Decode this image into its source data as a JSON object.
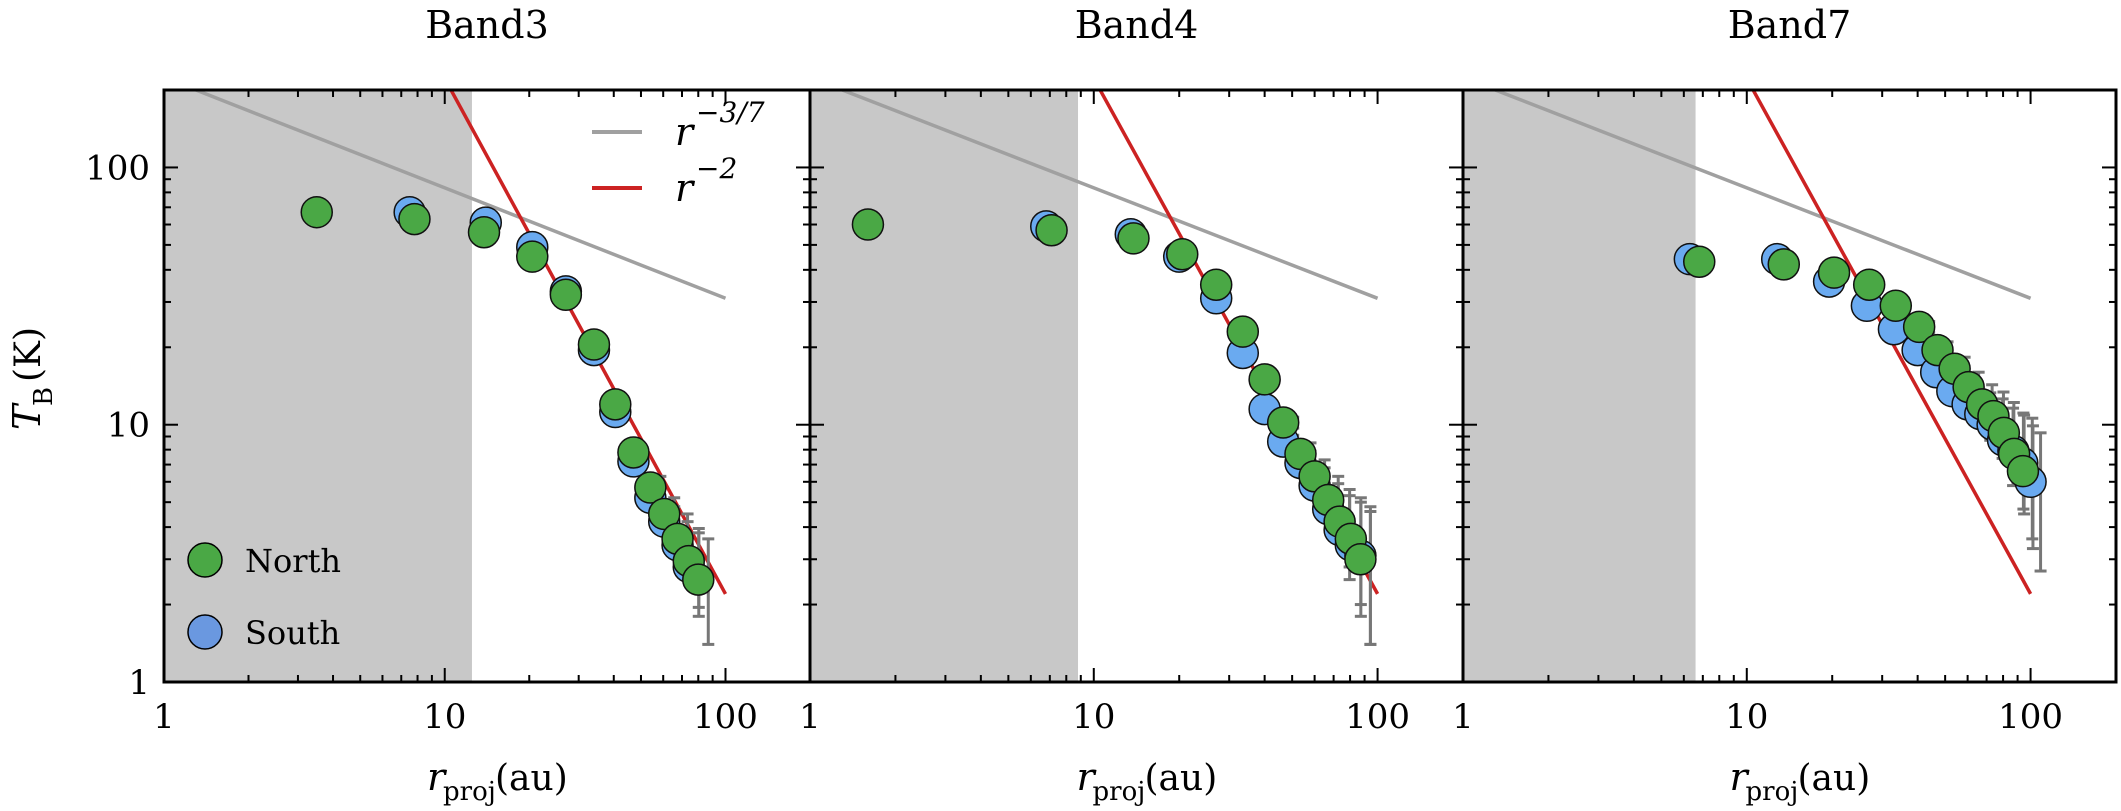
{
  "chart_data": [
    {
      "type": "scatter",
      "title": "Band3",
      "xlabel": "r_proj (au)",
      "ylabel": "T_B (K)",
      "xscale": "log",
      "yscale": "log",
      "xlim": [
        1,
        200
      ],
      "ylim": [
        1,
        200
      ],
      "xticks": [
        "1",
        "10",
        "100"
      ],
      "yticks": [
        "1",
        "10",
        "100"
      ],
      "shaded_region": [
        1,
        12.5
      ],
      "reference_lines": [
        {
          "name": "r^{-3/7}",
          "color": "#a0a0a0",
          "x": [
            1.3,
            100
          ],
          "y": [
            200,
            31
          ]
        },
        {
          "name": "r^{-2}",
          "color": "#cc2222",
          "x": [
            10.4,
            100
          ],
          "y": [
            205,
            2.2
          ]
        }
      ],
      "series": [
        {
          "name": "South",
          "color": "#6aaaf0",
          "points": [
            {
              "x": 7.5,
              "y": 67,
              "err": 0
            },
            {
              "x": 14,
              "y": 61,
              "err": 0
            },
            {
              "x": 20.5,
              "y": 49,
              "err": 0
            },
            {
              "x": 27,
              "y": 33,
              "err": 0
            },
            {
              "x": 34,
              "y": 19.5,
              "err": 0
            },
            {
              "x": 40.5,
              "y": 11.2,
              "err": 0
            },
            {
              "x": 47,
              "y": 7.2,
              "err": 0
            },
            {
              "x": 54,
              "y": 5.2,
              "err": 0.5
            },
            {
              "x": 60.5,
              "y": 4.2,
              "err": 0.6
            },
            {
              "x": 67.5,
              "y": 3.4,
              "err": 0.8
            },
            {
              "x": 74,
              "y": 2.8,
              "err": 1.0
            }
          ]
        },
        {
          "name": "North",
          "color": "#4aa845",
          "points": [
            {
              "x": 3.5,
              "y": 67,
              "err": 0
            },
            {
              "x": 7.8,
              "y": 63,
              "err": 0
            },
            {
              "x": 13.8,
              "y": 56,
              "err": 0
            },
            {
              "x": 20.5,
              "y": 45,
              "err": 0
            },
            {
              "x": 27,
              "y": 32,
              "err": 0
            },
            {
              "x": 34,
              "y": 20.5,
              "err": 0
            },
            {
              "x": 40.5,
              "y": 12,
              "err": 0
            },
            {
              "x": 47,
              "y": 7.8,
              "err": 0
            },
            {
              "x": 54,
              "y": 5.7,
              "err": 0.6
            },
            {
              "x": 60.5,
              "y": 4.5,
              "err": 0.7
            },
            {
              "x": 67.5,
              "y": 3.6,
              "err": 0.9
            },
            {
              "x": 74,
              "y": 2.95,
              "err": 1.0
            },
            {
              "x": 80,
              "y": 2.5,
              "err": 1.1
            }
          ]
        }
      ]
    },
    {
      "type": "scatter",
      "title": "Band4",
      "xlabel": "r_proj (au)",
      "ylabel": "",
      "xscale": "log",
      "yscale": "log",
      "xlim": [
        1,
        200
      ],
      "ylim": [
        1,
        200
      ],
      "xticks": [
        "1",
        "10",
        "100"
      ],
      "shaded_region": [
        1,
        8.8
      ],
      "reference_lines": [
        {
          "name": "r^{-3/7}",
          "color": "#a0a0a0",
          "x": [
            1.3,
            100
          ],
          "y": [
            200,
            31
          ]
        },
        {
          "name": "r^{-2}",
          "color": "#cc2222",
          "x": [
            10.4,
            100
          ],
          "y": [
            205,
            2.2
          ]
        }
      ],
      "series": [
        {
          "name": "South",
          "color": "#6aaaf0",
          "points": [
            {
              "x": 6.8,
              "y": 59,
              "err": 0
            },
            {
              "x": 13.5,
              "y": 55,
              "err": 0
            },
            {
              "x": 20,
              "y": 45,
              "err": 0
            },
            {
              "x": 27,
              "y": 31,
              "err": 0
            },
            {
              "x": 33.5,
              "y": 19,
              "err": 0
            },
            {
              "x": 40,
              "y": 11.5,
              "err": 0
            },
            {
              "x": 46.5,
              "y": 8.6,
              "err": 0.5
            },
            {
              "x": 53.5,
              "y": 7.1,
              "err": 0.8
            },
            {
              "x": 60,
              "y": 5.8,
              "err": 1.0
            },
            {
              "x": 67,
              "y": 4.7,
              "err": 1.2
            },
            {
              "x": 73.5,
              "y": 3.9,
              "err": 1.4
            },
            {
              "x": 80.5,
              "y": 3.4,
              "err": 1.6
            },
            {
              "x": 87,
              "y": 3.1,
              "err": 1.7
            }
          ]
        },
        {
          "name": "North",
          "color": "#4aa845",
          "points": [
            {
              "x": 1.6,
              "y": 60,
              "err": 0
            },
            {
              "x": 7.1,
              "y": 57,
              "err": 0
            },
            {
              "x": 13.8,
              "y": 53,
              "err": 0
            },
            {
              "x": 20.5,
              "y": 46,
              "err": 0
            },
            {
              "x": 27,
              "y": 35,
              "err": 0
            },
            {
              "x": 33.5,
              "y": 23,
              "err": 0
            },
            {
              "x": 40,
              "y": 15,
              "err": 0
            },
            {
              "x": 46.5,
              "y": 10.2,
              "err": 0.5
            },
            {
              "x": 53.5,
              "y": 7.7,
              "err": 0.8
            },
            {
              "x": 60,
              "y": 6.3,
              "err": 1.0
            },
            {
              "x": 67,
              "y": 5.1,
              "err": 1.2
            },
            {
              "x": 73.5,
              "y": 4.2,
              "err": 1.4
            },
            {
              "x": 80.5,
              "y": 3.6,
              "err": 1.6
            },
            {
              "x": 87,
              "y": 3.0,
              "err": 1.6
            }
          ]
        }
      ]
    },
    {
      "type": "scatter",
      "title": "Band7",
      "xlabel": "r_proj (au)",
      "ylabel": "",
      "xscale": "log",
      "yscale": "log",
      "xlim": [
        1,
        200
      ],
      "ylim": [
        1,
        200
      ],
      "xticks": [
        "1",
        "10",
        "100"
      ],
      "shaded_region": [
        1,
        6.6
      ],
      "reference_lines": [
        {
          "name": "r^{-3/7}",
          "color": "#a0a0a0",
          "x": [
            1.3,
            100
          ],
          "y": [
            200,
            31
          ]
        },
        {
          "name": "r^{-2}",
          "color": "#cc2222",
          "x": [
            10.4,
            100
          ],
          "y": [
            205,
            2.2
          ]
        }
      ],
      "series": [
        {
          "name": "South",
          "color": "#6aaaf0",
          "points": [
            {
              "x": 6.3,
              "y": 44,
              "err": 0
            },
            {
              "x": 12.8,
              "y": 44,
              "err": 0
            },
            {
              "x": 19.5,
              "y": 36,
              "err": 0
            },
            {
              "x": 26.5,
              "y": 29,
              "err": 0
            },
            {
              "x": 33,
              "y": 23.5,
              "err": 0
            },
            {
              "x": 40,
              "y": 19.5,
              "err": 1.2
            },
            {
              "x": 46.5,
              "y": 16,
              "err": 1.5
            },
            {
              "x": 53,
              "y": 13.5,
              "err": 1.8
            },
            {
              "x": 60,
              "y": 12,
              "err": 2.0
            },
            {
              "x": 66.5,
              "y": 11,
              "err": 2.3
            },
            {
              "x": 73.5,
              "y": 10,
              "err": 2.6
            },
            {
              "x": 80,
              "y": 8.7,
              "err": 2.9
            },
            {
              "x": 87,
              "y": 7.9,
              "err": 3.2
            },
            {
              "x": 93.5,
              "y": 7.1,
              "err": 3.5
            },
            {
              "x": 100,
              "y": 6.0,
              "err": 3.3
            }
          ]
        },
        {
          "name": "North",
          "color": "#4aa845",
          "points": [
            {
              "x": 6.8,
              "y": 43,
              "err": 0
            },
            {
              "x": 13.5,
              "y": 42,
              "err": 0
            },
            {
              "x": 20.3,
              "y": 39,
              "err": 0
            },
            {
              "x": 27,
              "y": 35,
              "err": 0
            },
            {
              "x": 33.5,
              "y": 29,
              "err": 0
            },
            {
              "x": 40.5,
              "y": 24,
              "err": 1.2
            },
            {
              "x": 47,
              "y": 19.5,
              "err": 1.5
            },
            {
              "x": 54,
              "y": 16.5,
              "err": 1.8
            },
            {
              "x": 60.5,
              "y": 14,
              "err": 2.0
            },
            {
              "x": 67.5,
              "y": 12,
              "err": 2.3
            },
            {
              "x": 74,
              "y": 10.8,
              "err": 2.6
            },
            {
              "x": 80.5,
              "y": 9.3,
              "err": 2.9
            },
            {
              "x": 87.5,
              "y": 7.7,
              "err": 3.2
            },
            {
              "x": 94,
              "y": 6.6,
              "err": 3.3
            }
          ]
        }
      ]
    }
  ],
  "legend": {
    "lines": [
      {
        "label_base": "r",
        "label_exp": "−3/7",
        "color": "#a0a0a0"
      },
      {
        "label_base": "r",
        "label_exp": "−2",
        "color": "#cc2222"
      }
    ],
    "markers": [
      {
        "label": "North",
        "color": "#4aa845"
      },
      {
        "label": "South",
        "color": "#6a98e0"
      }
    ]
  },
  "ylabel": {
    "main": "T",
    "sub": "B",
    "unit": "(K)"
  },
  "xlabel": {
    "main": "r",
    "sub": "proj",
    "unit": "(au)"
  }
}
